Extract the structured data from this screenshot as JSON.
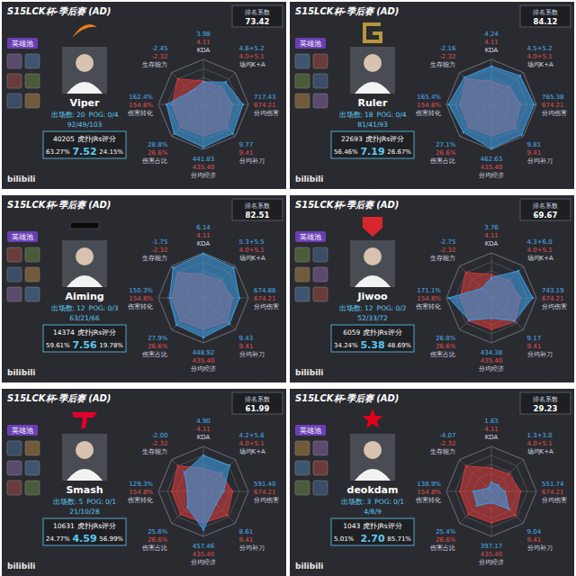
{
  "chart_data": [
    {
      "type": "radar",
      "title": "S15LCK杯-季后赛 (AD)",
      "rank_label": "排名系数",
      "rank_value": 73.42,
      "hero_pool_label": "英雄池",
      "games_label": "出场数:",
      "games": 20,
      "pog_label": "POG:",
      "pog": "0/4",
      "kda_totals": "92/49/103",
      "votes": 40205,
      "votes_label": "虎扑JRs评分",
      "rating": "7.52",
      "rating_share": "63.27%",
      "low_share": "24.15%",
      "watermark": "bilibili",
      "categories": [
        "KDA",
        "场均K+A",
        "分均伤害",
        "分均补刀",
        "分均经济",
        "伤害占比",
        "伤害转化",
        "生存能力"
      ],
      "stat_values": [
        "3.98",
        "4.6+5.2",
        "717.43",
        "9.77",
        "441.83",
        "28.8%",
        "162.4%",
        "-2.45"
      ],
      "stat_averages": [
        "4.11",
        "4.0+5.1",
        "674.21",
        "9.41",
        "435.40",
        "26.6%",
        "154.8%",
        "-2.32"
      ],
      "series": [
        {
          "name": "Viper",
          "color": "#3d9be0",
          "values": [
            50,
            70,
            88,
            92,
            95,
            92,
            82,
            40
          ]
        },
        {
          "color": "#d03a3a",
          "values": [
            52,
            55,
            65,
            75,
            70,
            72,
            70,
            80
          ]
        }
      ],
      "ylim": [
        0,
        100
      ],
      "yticks": [
        20,
        40,
        60,
        80,
        100
      ],
      "tick_labels": false
    },
    {
      "type": "radar",
      "title": "S15LCK杯-季后赛 (AD)",
      "rank_label": "排名系数",
      "rank_value": 84.12,
      "hero_pool_label": "英雄池",
      "games_label": "出场数:",
      "games": 18,
      "pog_label": "POG:",
      "pog": "0/4",
      "kda_totals": "81/41/93",
      "votes": 22693,
      "votes_label": "虎扑JRs评分",
      "rating": "7.19",
      "rating_share": "56.46%",
      "low_share": "26.67%",
      "watermark": "bilibili",
      "categories": [
        "KDA",
        "场均K+A",
        "分均伤害",
        "分均补刀",
        "分均经济",
        "伤害占比",
        "伤害转化",
        "生存能力"
      ],
      "stat_values": [
        "4.24",
        "4.5+5.2",
        "765.38",
        "9.81",
        "462.63",
        "27.1%",
        "165.4%",
        "-2.16"
      ],
      "stat_averages": [
        "4.11",
        "4.0+5.1",
        "674.21",
        "9.41",
        "435.40",
        "26.6%",
        "154.8%",
        "-2.32"
      ],
      "series": [
        {
          "name": "Ruler",
          "color": "#3d9be0",
          "values": [
            85,
            90,
            95,
            95,
            98,
            88,
            95,
            85
          ]
        },
        {
          "color": "#d03a3a",
          "values": [
            52,
            55,
            65,
            75,
            70,
            72,
            70,
            80
          ]
        }
      ],
      "ylim": [
        0,
        100
      ],
      "yticks": [
        20,
        40,
        60,
        80,
        100
      ],
      "tick_labels": false
    },
    {
      "type": "radar",
      "title": "S15LCK杯-季后赛 (AD)",
      "rank_label": "排名系数",
      "rank_value": 82.51,
      "hero_pool_label": "英雄池",
      "games_label": "出场数:",
      "games": 12,
      "pog_label": "POG:",
      "pog": "0/3",
      "kda_totals": "63/21/66",
      "votes": 14374,
      "votes_label": "虎扑JRs评分",
      "rating": "7.56",
      "rating_share": "59.61%",
      "low_share": "19.78%",
      "watermark": "bilibili",
      "categories": [
        "KDA",
        "场均K+A",
        "分均伤害",
        "分均补刀",
        "分均经济",
        "伤害占比",
        "伤害转化",
        "生存能力"
      ],
      "stat_values": [
        "6.14",
        "5.3+5.5",
        "674.88",
        "9.43",
        "448.92",
        "27.9%",
        "150.3%",
        "-1.75"
      ],
      "stat_averages": [
        "4.11",
        "4.0+5.1",
        "674.21",
        "9.41",
        "435.40",
        "26.6%",
        "154.8%",
        "-2.32"
      ],
      "series": [
        {
          "name": "Aiming",
          "color": "#3d9be0",
          "values": [
            98,
            95,
            80,
            82,
            88,
            85,
            75,
            95
          ]
        },
        {
          "color": "#d03a3a",
          "values": [
            52,
            55,
            65,
            75,
            70,
            72,
            70,
            80
          ]
        }
      ],
      "ylim": [
        0,
        100
      ],
      "yticks": [
        20,
        40,
        60,
        80,
        100
      ],
      "tick_labels": false
    },
    {
      "type": "radar",
      "title": "S15LCK杯-季后赛 (AD)",
      "rank_label": "排名系数",
      "rank_value": 69.67,
      "hero_pool_label": "英雄池",
      "games_label": "出场数:",
      "games": 12,
      "pog_label": "POG:",
      "pog": "0/2",
      "kda_totals": "52/33/72",
      "votes": 6059,
      "votes_label": "虎扑JRs评分",
      "rating": "5.38",
      "rating_share": "34.24%",
      "low_share": "48.69%",
      "watermark": "bilibili",
      "categories": [
        "KDA",
        "场均K+A",
        "分均伤害",
        "分均补刀",
        "分均经济",
        "伤害占比",
        "伤害转化",
        "生存能力"
      ],
      "stat_values": [
        "3.76",
        "4.3+6.0",
        "743.19",
        "9.17",
        "434.38",
        "26.8%",
        "171.1%",
        "-2.75"
      ],
      "stat_averages": [
        "4.11",
        "4.0+5.1",
        "674.21",
        "9.41",
        "435.40",
        "26.6%",
        "154.8%",
        "-2.32"
      ],
      "series": [
        {
          "name": "Jiwoo",
          "color": "#3d9be0",
          "values": [
            45,
            85,
            92,
            72,
            45,
            70,
            95,
            30
          ]
        },
        {
          "color": "#d03a3a",
          "values": [
            52,
            55,
            65,
            75,
            70,
            72,
            70,
            80
          ]
        }
      ],
      "ylim": [
        0,
        100
      ],
      "yticks": [
        20,
        40,
        60,
        80,
        100
      ],
      "tick_labels": false
    },
    {
      "type": "radar",
      "title": "S15LCK杯-季后赛 (AD)",
      "rank_label": "排名系数",
      "rank_value": 61.99,
      "hero_pool_label": "英雄池",
      "games_label": "出场数:",
      "games": 5,
      "pog_label": "POG:",
      "pog": "0/1",
      "kda_totals": "21/10/28",
      "votes": 10631,
      "votes_label": "虎扑JRs评分",
      "rating": "4.59",
      "rating_share": "24.77%",
      "low_share": "56.99%",
      "watermark": "bilibili",
      "categories": [
        "KDA",
        "场均K+A",
        "分均伤害",
        "分均补刀",
        "分均经济",
        "伤害占比",
        "伤害转化",
        "生存能力"
      ],
      "stat_values": [
        "4.90",
        "4.2+5.6",
        "591.40",
        "8.61",
        "457.46",
        "25.6%",
        "129.3%",
        "-2.00"
      ],
      "stat_averages": [
        "4.11",
        "4.0+5.1",
        "674.21",
        "9.41",
        "435.40",
        "26.6%",
        "154.8%",
        "-2.32"
      ],
      "series": [
        {
          "name": "Smash",
          "color": "#3d9be0",
          "values": [
            80,
            82,
            45,
            40,
            85,
            50,
            35,
            60
          ]
        },
        {
          "color": "#d03a3a",
          "values": [
            52,
            55,
            65,
            75,
            70,
            72,
            70,
            80
          ]
        }
      ],
      "ylim": [
        0,
        100
      ],
      "yticks": [
        20,
        40,
        60,
        80,
        100
      ],
      "tick_labels": false
    },
    {
      "type": "radar",
      "title": "S15LCK杯-季后赛 (AD)",
      "rank_label": "排名系数",
      "rank_value": 29.23,
      "hero_pool_label": "英雄池",
      "games_label": "出场数:",
      "games": 3,
      "pog_label": "POG:",
      "pog": "0/1",
      "kda_totals": "4/8/9",
      "votes": 1043,
      "votes_label": "虎扑JRs评分",
      "rating": "2.70",
      "rating_share": "5.01%",
      "low_share": "85.71%",
      "watermark": "bilibili",
      "categories": [
        "KDA",
        "场均K+A",
        "分均伤害",
        "分均补刀",
        "分均经济",
        "伤害占比",
        "伤害转化",
        "生存能力"
      ],
      "stat_values": [
        "1.63",
        "1.3+3.0",
        "551.74",
        "9.04",
        "397.17",
        "25.4%",
        "138.9%",
        "-4.07"
      ],
      "stat_averages": [
        "4.11",
        "4.0+5.1",
        "674.21",
        "9.41",
        "435.40",
        "26.6%",
        "154.8%",
        "-2.32"
      ],
      "series": [
        {
          "name": "deokdam",
          "color": "#3d9be0",
          "values": [
            20,
            20,
            30,
            55,
            25,
            45,
            40,
            10
          ]
        },
        {
          "color": "#d03a3a",
          "values": [
            52,
            55,
            65,
            75,
            70,
            72,
            70,
            80
          ]
        }
      ],
      "ylim": [
        0,
        100
      ],
      "yticks": [
        20,
        40,
        60,
        80,
        100
      ],
      "tick_labels": false
    }
  ]
}
